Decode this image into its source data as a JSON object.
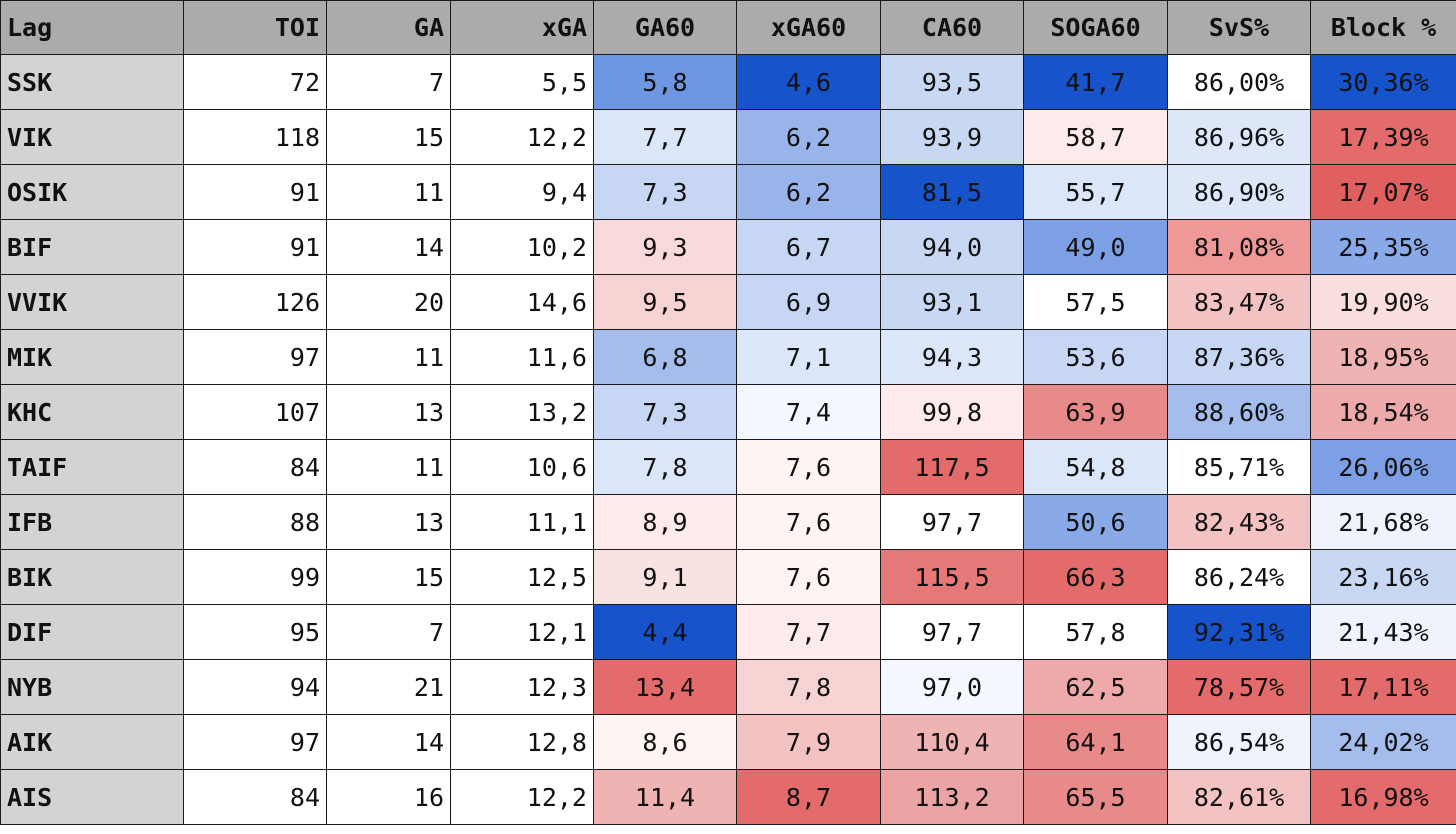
{
  "chart_data": {
    "type": "table",
    "columns": [
      "Lag",
      "TOI",
      "GA",
      "xGA",
      "GA60",
      "xGA60",
      "CA60",
      "SOGA60",
      "SvS%",
      "Block %"
    ],
    "rows": [
      [
        "SSK",
        "72",
        "7",
        "5,5",
        "5,8",
        "4,6",
        "93,5",
        "41,7",
        "86,00%",
        "30,36%"
      ],
      [
        "VIK",
        "118",
        "15",
        "12,2",
        "7,7",
        "6,2",
        "93,9",
        "58,7",
        "86,96%",
        "17,39%"
      ],
      [
        "OSIK",
        "91",
        "11",
        "9,4",
        "7,3",
        "6,2",
        "81,5",
        "55,7",
        "86,90%",
        "17,07%"
      ],
      [
        "BIF",
        "91",
        "14",
        "10,2",
        "9,3",
        "6,7",
        "94,0",
        "49,0",
        "81,08%",
        "25,35%"
      ],
      [
        "VVIK",
        "126",
        "20",
        "14,6",
        "9,5",
        "6,9",
        "93,1",
        "57,5",
        "83,47%",
        "19,90%"
      ],
      [
        "MIK",
        "97",
        "11",
        "11,6",
        "6,8",
        "7,1",
        "94,3",
        "53,6",
        "87,36%",
        "18,95%"
      ],
      [
        "KHC",
        "107",
        "13",
        "13,2",
        "7,3",
        "7,4",
        "99,8",
        "63,9",
        "88,60%",
        "18,54%"
      ],
      [
        "TAIF",
        "84",
        "11",
        "10,6",
        "7,8",
        "7,6",
        "117,5",
        "54,8",
        "85,71%",
        "26,06%"
      ],
      [
        "IFB",
        "88",
        "13",
        "11,1",
        "8,9",
        "7,6",
        "97,7",
        "50,6",
        "82,43%",
        "21,68%"
      ],
      [
        "BIK",
        "99",
        "15",
        "12,5",
        "9,1",
        "7,6",
        "115,5",
        "66,3",
        "86,24%",
        "23,16%"
      ],
      [
        "DIF",
        "95",
        "7",
        "12,1",
        "4,4",
        "7,7",
        "97,7",
        "57,8",
        "92,31%",
        "21,43%"
      ],
      [
        "NYB",
        "94",
        "21",
        "12,3",
        "13,4",
        "7,8",
        "97,0",
        "62,5",
        "78,57%",
        "17,11%"
      ],
      [
        "AIK",
        "97",
        "14",
        "12,8",
        "8,6",
        "7,9",
        "110,4",
        "64,1",
        "86,54%",
        "24,02%"
      ],
      [
        "AIS",
        "84",
        "16",
        "12,2",
        "11,4",
        "8,7",
        "113,2",
        "65,5",
        "82,61%",
        "16,98%"
      ]
    ],
    "cell_colors": [
      [
        null,
        null,
        null,
        null,
        "#6e97e3",
        "#1754cc",
        "#c8d8f2",
        "#1754cc",
        "#ffffff",
        "#1754cc"
      ],
      [
        null,
        null,
        null,
        null,
        "#dbe6f8",
        "#98b4ea",
        "#c8d8f2",
        "#fdeaea",
        "#dde7f8",
        "#e36b6b"
      ],
      [
        null,
        null,
        null,
        null,
        "#c6d6f3",
        "#98b4ea",
        "#1754cc",
        "#dbe6f8",
        "#dde7f8",
        "#e06060"
      ],
      [
        null,
        null,
        null,
        null,
        "#f8dada",
        "#c6d6f3",
        "#c8d8f2",
        "#7d9fe5",
        "#ee9898",
        "#8aa9e8"
      ],
      [
        null,
        null,
        null,
        null,
        "#f6d3d3",
        "#c6d6f3",
        "#c8d8f2",
        "#ffffff",
        "#f3c2c2",
        "#fadfdf"
      ],
      [
        null,
        null,
        null,
        null,
        "#a4bdec",
        "#dbe6f8",
        "#dbe6f8",
        "#c6d6f3",
        "#c6d6f3",
        "#f0b3b3"
      ],
      [
        null,
        null,
        null,
        null,
        "#c6d6f3",
        "#f5f8fe",
        "#fdeaea",
        "#e98a8a",
        "#a4bdec",
        "#eeaaaa"
      ],
      [
        null,
        null,
        null,
        null,
        "#dbe6f8",
        "#fef4f4",
        "#e36b6b",
        "#dbe6f8",
        "#ffffff",
        "#7d9fe5"
      ],
      [
        null,
        null,
        null,
        null,
        "#fdeaea",
        "#fef4f4",
        "#ffffff",
        "#8aa9e8",
        "#f3c2c2",
        "#eef3fc"
      ],
      [
        null,
        null,
        null,
        null,
        "#f8e2e2",
        "#fef4f4",
        "#e77878",
        "#e36b6b",
        "#ffffff",
        "#c8d8f2"
      ],
      [
        null,
        null,
        null,
        null,
        "#1754cc",
        "#fdeaea",
        "#ffffff",
        "#ffffff",
        "#1754cc",
        "#eef3fc"
      ],
      [
        null,
        null,
        null,
        null,
        "#e36b6b",
        "#f6d3d3",
        "#f5f8fe",
        "#eeaaaa",
        "#e36b6b",
        "#e36b6b"
      ],
      [
        null,
        null,
        null,
        null,
        "#fef4f4",
        "#f3c2c2",
        "#f0b3b3",
        "#e98a8a",
        "#eef3fc",
        "#a4bdec"
      ],
      [
        null,
        null,
        null,
        null,
        "#f0b3b3",
        "#e36b6b",
        "#eba3a3",
        "#e98a8a",
        "#f3c2c2",
        "#e36b6b"
      ]
    ]
  }
}
